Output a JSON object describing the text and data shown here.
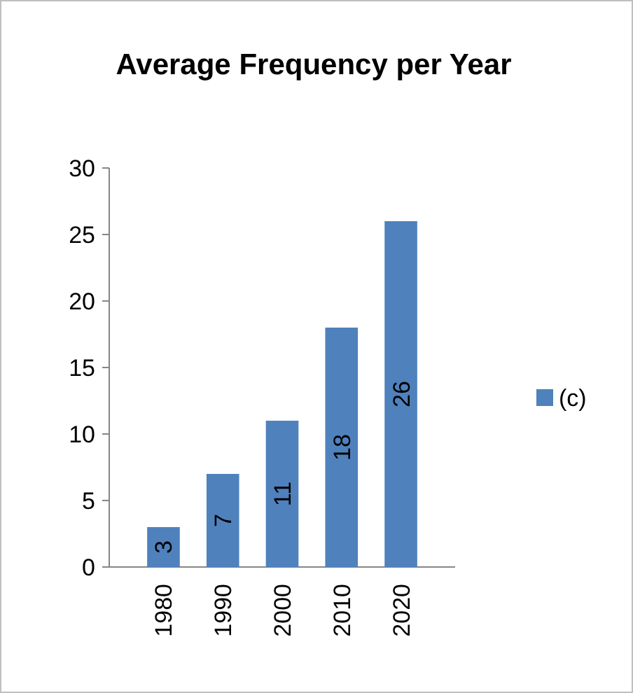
{
  "chart_data": {
    "type": "bar",
    "title": "Average Frequency per Year",
    "categories": [
      "1980",
      "1990",
      "2000",
      "2010",
      "2020"
    ],
    "series": [
      {
        "name": "(c)",
        "color": "#4f81bd",
        "values": [
          3,
          7,
          11,
          18,
          26
        ]
      }
    ],
    "ylim": [
      0,
      30
    ],
    "yticks": [
      0,
      5,
      10,
      15,
      20,
      25,
      30
    ],
    "grid": false,
    "legend": "right",
    "data_labels": true
  }
}
